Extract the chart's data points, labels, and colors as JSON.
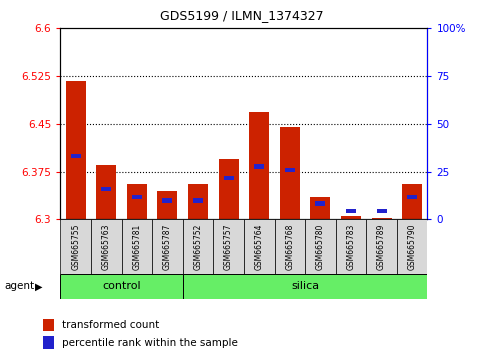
{
  "title": "GDS5199 / ILMN_1374327",
  "samples": [
    "GSM665755",
    "GSM665763",
    "GSM665781",
    "GSM665787",
    "GSM665752",
    "GSM665757",
    "GSM665764",
    "GSM665768",
    "GSM665780",
    "GSM665783",
    "GSM665789",
    "GSM665790"
  ],
  "red_values": [
    6.518,
    6.385,
    6.355,
    6.345,
    6.355,
    6.395,
    6.468,
    6.445,
    6.335,
    6.305,
    6.303,
    6.355
  ],
  "blue_values": [
    6.4,
    6.348,
    6.335,
    6.33,
    6.33,
    6.365,
    6.383,
    6.378,
    6.325,
    6.313,
    6.313,
    6.335
  ],
  "y_min": 6.3,
  "y_max": 6.6,
  "y_ticks_left": [
    6.3,
    6.375,
    6.45,
    6.525,
    6.6
  ],
  "y_ticks_right": [
    0,
    25,
    50,
    75,
    100
  ],
  "bar_color": "#cc2200",
  "blue_color": "#2222cc",
  "bar_width": 0.65,
  "agent_label": "agent",
  "legend_red": "transformed count",
  "legend_blue": "percentile rank within the sample",
  "dotted_lines": [
    6.375,
    6.45,
    6.525
  ],
  "group_label_control": "control",
  "group_label_silica": "silica",
  "control_count": 4,
  "silica_count": 8,
  "green_color": "#66ee66"
}
